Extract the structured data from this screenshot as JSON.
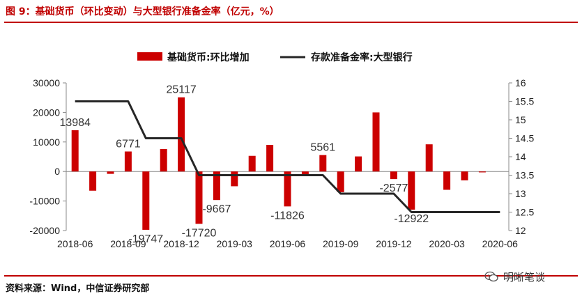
{
  "header": {
    "title": "图 9：基础货币（环比变动）与大型银行准备金率（亿元，%）"
  },
  "footer": {
    "source": "资料来源：Wind，中信证券研究部",
    "watermark": "明晰笔谈"
  },
  "colors": {
    "bar": "#cc0000",
    "line": "#262626",
    "title": "#c00000",
    "axis": "#888888"
  },
  "chart_data": {
    "type": "bar+line",
    "x": [
      "2018-06",
      "2018-07",
      "2018-08",
      "2018-09",
      "2018-10",
      "2018-11",
      "2018-12",
      "2019-01",
      "2019-02",
      "2019-03",
      "2019-04",
      "2019-05",
      "2019-06",
      "2019-07",
      "2019-08",
      "2019-09",
      "2019-10",
      "2019-11",
      "2019-12",
      "2020-01",
      "2020-02",
      "2020-03",
      "2020-04",
      "2020-05",
      "2020-06"
    ],
    "x_tick_labels": [
      "2018-06",
      "2018-09",
      "2018-12",
      "2019-03",
      "2019-06",
      "2019-09",
      "2019-12",
      "2020-03",
      "2020-06"
    ],
    "series": [
      {
        "name": "基础货币:环比增加",
        "type": "bar",
        "axis": "left",
        "values": [
          13984,
          -6500,
          -800,
          6771,
          -19747,
          7600,
          25117,
          -17720,
          -9667,
          -5000,
          5300,
          9000,
          -11826,
          -1000,
          5561,
          -7000,
          5100,
          20000,
          -2577,
          -12922,
          9200,
          -6200,
          -3000,
          -300,
          0
        ]
      },
      {
        "name": "存款准备金率:大型银行",
        "type": "line",
        "axis": "right",
        "values": [
          15.5,
          15.5,
          15.5,
          15.5,
          14.5,
          14.5,
          14.5,
          13.5,
          13.5,
          13.5,
          13.5,
          13.5,
          13.5,
          13.5,
          13.5,
          13.0,
          13.0,
          13.0,
          13.0,
          12.5,
          12.5,
          12.5,
          12.5,
          12.5,
          12.5
        ]
      }
    ],
    "data_labels": [
      {
        "index": 0,
        "text": "13984"
      },
      {
        "index": 3,
        "text": "6771"
      },
      {
        "index": 4,
        "text": "-19747"
      },
      {
        "index": 6,
        "text": "25117"
      },
      {
        "index": 7,
        "text": "-17720"
      },
      {
        "index": 8,
        "text": "-9667"
      },
      {
        "index": 12,
        "text": "-11826"
      },
      {
        "index": 14,
        "text": "5561"
      },
      {
        "index": 18,
        "text": "-2577"
      },
      {
        "index": 19,
        "text": "-12922"
      }
    ],
    "y_left": {
      "ticks": [
        "30000",
        "20000",
        "10000",
        "0",
        "-10000",
        "-20000"
      ],
      "lim": [
        -20000,
        30000
      ]
    },
    "y_right": {
      "ticks": [
        "16",
        "15.5",
        "15",
        "14.5",
        "14",
        "13.5",
        "13",
        "12.5",
        "12"
      ],
      "lim": [
        12,
        16
      ]
    },
    "legend_position": "top-center",
    "grid": false
  }
}
